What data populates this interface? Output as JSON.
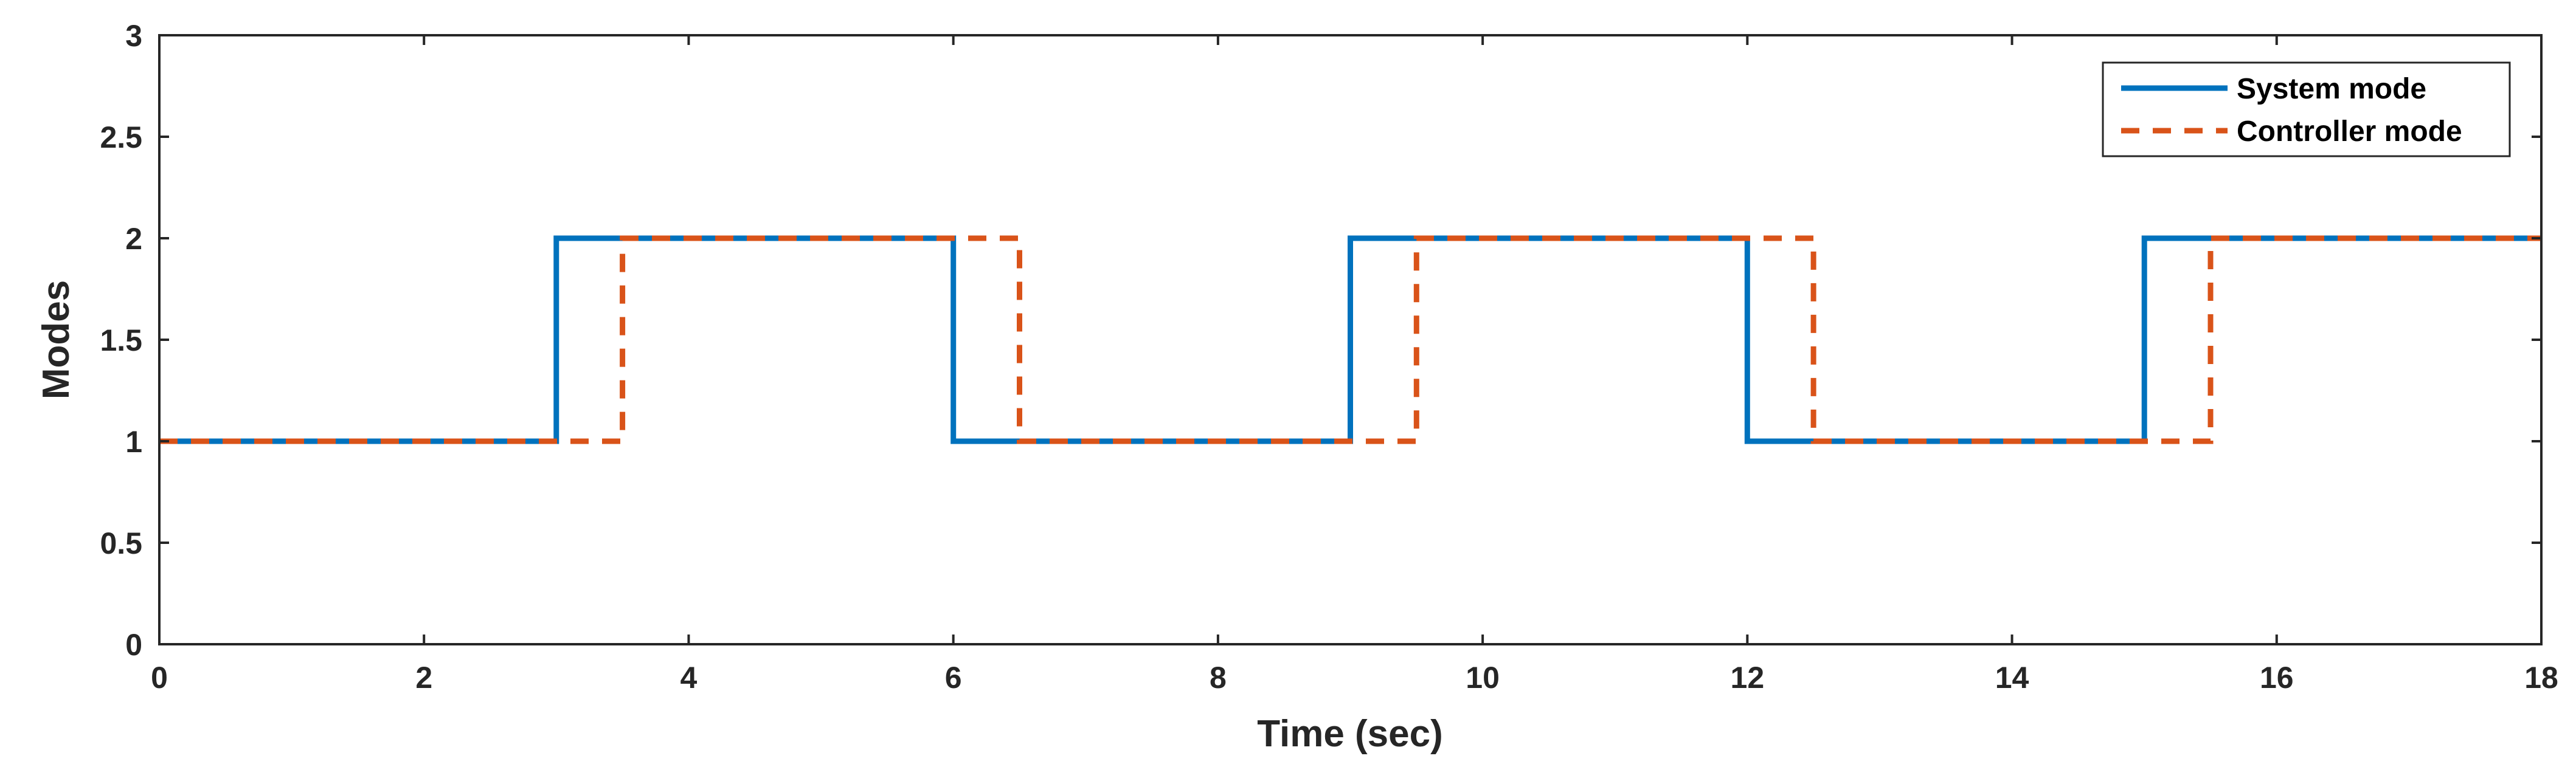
{
  "chart_data": {
    "type": "line",
    "xlabel": "Time (sec)",
    "ylabel": "Modes",
    "xlim": [
      0,
      18
    ],
    "ylim": [
      0,
      3
    ],
    "xticks": [
      0,
      2,
      4,
      6,
      8,
      10,
      12,
      14,
      16,
      18
    ],
    "yticks": [
      0,
      0.5,
      1,
      1.5,
      2,
      2.5,
      3
    ],
    "xtick_labels": [
      "0",
      "2",
      "4",
      "6",
      "8",
      "10",
      "12",
      "14",
      "16",
      "18"
    ],
    "ytick_labels": [
      "0",
      "0.5",
      "1",
      "1.5",
      "2",
      "2.5",
      "3"
    ],
    "grid": false,
    "legend_position": "top-right",
    "series": [
      {
        "name": "System mode",
        "color": "#0072BD",
        "style": "solid",
        "x": [
          0,
          3,
          3,
          6,
          6,
          9,
          9,
          12,
          12,
          15,
          15,
          18
        ],
        "y": [
          1,
          1,
          2,
          2,
          1,
          1,
          2,
          2,
          1,
          1,
          2,
          2
        ]
      },
      {
        "name": "Controller mode",
        "color": "#D95319",
        "style": "dashed",
        "x": [
          0,
          3.5,
          3.5,
          6.5,
          6.5,
          9.5,
          9.5,
          12.5,
          12.5,
          15.5,
          15.5,
          18
        ],
        "y": [
          1,
          1,
          2,
          2,
          1,
          1,
          2,
          2,
          1,
          1,
          2,
          2
        ]
      }
    ]
  }
}
